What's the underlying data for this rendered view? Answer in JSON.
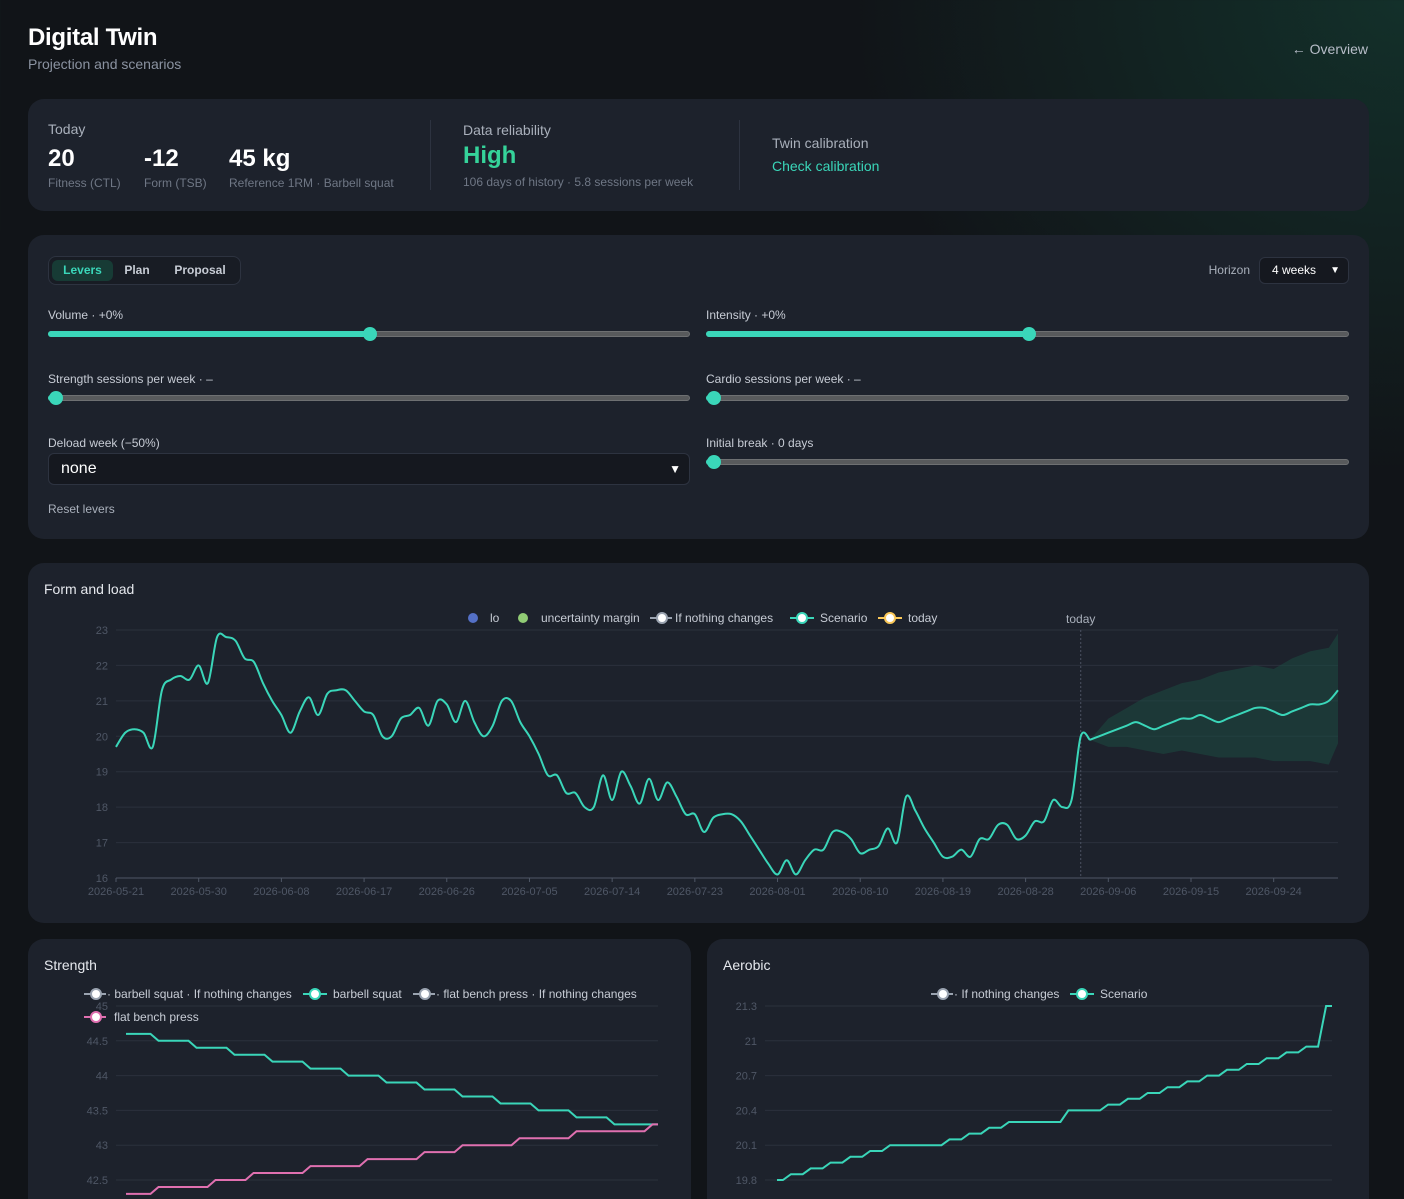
{
  "header": {
    "title": "Digital Twin",
    "subtitle": "Projection and scenarios",
    "back_link": "← Overview"
  },
  "today_panel": {
    "label": "Today",
    "metrics": [
      {
        "value": "20",
        "caption": "Fitness (CTL)"
      },
      {
        "value": "-12",
        "caption": "Form (TSB)"
      },
      {
        "value": "45 kg",
        "caption": "Reference 1RM · Barbell squat"
      }
    ]
  },
  "reliability": {
    "label": "Data reliability",
    "value": "High",
    "detail": "106 days of history · 5.8 sessions per week"
  },
  "calibration": {
    "label": "Twin calibration",
    "link": "Check calibration"
  },
  "levers": {
    "tabs": [
      {
        "label": "Levers",
        "active": true
      },
      {
        "label": "Plan",
        "active": false
      },
      {
        "label": "Proposal",
        "active": false
      }
    ],
    "horizon_label": "Horizon",
    "horizon_value": "4 weeks",
    "sliders": [
      {
        "id": "volume",
        "label": "Volume · +0%",
        "fraction": 0.5
      },
      {
        "id": "intensity",
        "label": "Intensity · +0%",
        "fraction": 0.5
      },
      {
        "id": "strength_sessions",
        "label": "Strength sessions per week · –",
        "fraction": 0
      },
      {
        "id": "cardio_sessions",
        "label": "Cardio sessions per week · –",
        "fraction": 0
      },
      {
        "id": "initial_break",
        "label": "Initial break · 0 days",
        "fraction": 0
      }
    ],
    "deload_label": "Deload week (−50%)",
    "deload_value": "none",
    "reset_label": "Reset levers"
  },
  "colors": {
    "accent": "#3ad6b9",
    "reliability": "#35d39a",
    "lo": "#5470c6",
    "margin": "#91cc75",
    "today": "#fac858",
    "pink": "#e070b0",
    "neutral": "#ffffff"
  },
  "chart_data": [
    {
      "type": "line",
      "title": "Form and load",
      "legend": [
        "lo",
        "uncertainty margin",
        "If nothing changes",
        "Scenario",
        "today"
      ],
      "marker_label": "today",
      "today_index": 105,
      "ylim": [
        16,
        23
      ],
      "yticks": [
        "16",
        "17",
        "18",
        "19",
        "20",
        "21",
        "22",
        "23"
      ],
      "x_labels": [
        "2026-05-21",
        "2026-05-30",
        "2026-06-08",
        "2026-06-17",
        "2026-06-26",
        "2026-07-05",
        "2026-07-14",
        "2026-07-23",
        "2026-08-01",
        "2026-08-10",
        "2026-08-19",
        "2026-08-28",
        "2026-09-06",
        "2026-09-15",
        "2026-09-24"
      ],
      "x_label_step": 9,
      "n_points": 134,
      "series": [
        {
          "name": "Scenario",
          "key": "history",
          "points": [
            [
              0,
              19.7
            ],
            [
              1,
              20.1
            ],
            [
              2,
              20.2
            ],
            [
              3,
              20.1
            ],
            [
              4,
              19.7
            ],
            [
              5,
              21.3
            ],
            [
              6,
              21.6
            ],
            [
              7,
              21.7
            ],
            [
              8,
              21.6
            ],
            [
              9,
              22
            ],
            [
              10,
              21.5
            ],
            [
              11,
              22.8
            ],
            [
              12,
              22.8
            ],
            [
              13,
              22.7
            ],
            [
              14,
              22.2
            ],
            [
              15,
              22.1
            ],
            [
              16,
              21.5
            ],
            [
              17,
              21
            ],
            [
              18,
              20.6
            ],
            [
              19,
              20.1
            ],
            [
              20,
              20.7
            ],
            [
              21,
              21.1
            ],
            [
              22,
              20.6
            ],
            [
              23,
              21.2
            ],
            [
              24,
              21.3
            ],
            [
              25,
              21.3
            ],
            [
              26,
              21
            ],
            [
              27,
              20.7
            ],
            [
              28,
              20.6
            ],
            [
              29,
              20
            ],
            [
              30,
              20
            ],
            [
              31,
              20.5
            ],
            [
              32,
              20.6
            ],
            [
              33,
              20.8
            ],
            [
              34,
              20.3
            ],
            [
              35,
              21
            ],
            [
              36,
              20.9
            ],
            [
              37,
              20.4
            ],
            [
              38,
              21
            ],
            [
              39,
              20.4
            ],
            [
              40,
              20
            ],
            [
              41,
              20.3
            ],
            [
              42,
              21
            ],
            [
              43,
              21
            ],
            [
              44,
              20.4
            ],
            [
              45,
              20
            ],
            [
              46,
              19.5
            ],
            [
              47,
              18.9
            ],
            [
              48,
              18.9
            ],
            [
              49,
              18.4
            ],
            [
              50,
              18.4
            ],
            [
              51,
              18
            ],
            [
              52,
              18
            ],
            [
              53,
              18.9
            ],
            [
              54,
              18.2
            ],
            [
              55,
              19
            ],
            [
              56,
              18.6
            ],
            [
              57,
              18.1
            ],
            [
              58,
              18.8
            ],
            [
              59,
              18.2
            ],
            [
              60,
              18.7
            ],
            [
              61,
              18.3
            ],
            [
              62,
              17.8
            ],
            [
              63,
              17.8
            ],
            [
              64,
              17.3
            ],
            [
              65,
              17.7
            ],
            [
              66,
              17.8
            ],
            [
              67,
              17.8
            ],
            [
              68,
              17.6
            ],
            [
              69,
              17.2
            ],
            [
              70,
              16.8
            ],
            [
              71,
              16.4
            ],
            [
              72,
              16.1
            ],
            [
              73,
              16.5
            ],
            [
              74,
              16.1
            ],
            [
              75,
              16.5
            ],
            [
              76,
              16.8
            ],
            [
              77,
              16.8
            ],
            [
              78,
              17.3
            ],
            [
              79,
              17.3
            ],
            [
              80,
              17.1
            ],
            [
              81,
              16.7
            ],
            [
              82,
              16.8
            ],
            [
              83,
              16.9
            ],
            [
              84,
              17.4
            ],
            [
              85,
              17
            ],
            [
              86,
              18.3
            ],
            [
              87,
              17.9
            ],
            [
              88,
              17.4
            ],
            [
              89,
              17
            ],
            [
              90,
              16.6
            ],
            [
              91,
              16.6
            ],
            [
              92,
              16.8
            ],
            [
              93,
              16.6
            ],
            [
              94,
              17.1
            ],
            [
              95,
              17.1
            ],
            [
              96,
              17.5
            ],
            [
              97,
              17.5
            ],
            [
              98,
              17.1
            ],
            [
              99,
              17.2
            ],
            [
              100,
              17.6
            ],
            [
              101,
              17.6
            ],
            [
              102,
              18.2
            ],
            [
              103,
              18
            ],
            [
              104,
              18.2
            ],
            [
              105,
              20
            ],
            [
              106,
              19.9
            ]
          ]
        },
        {
          "name": "Scenario",
          "key": "scenario",
          "points": [
            [
              106,
              19.9
            ],
            [
              107,
              20
            ],
            [
              108,
              20.1
            ],
            [
              109,
              20.2
            ],
            [
              110,
              20.3
            ],
            [
              111,
              20.4
            ],
            [
              112,
              20.3
            ],
            [
              113,
              20.2
            ],
            [
              114,
              20.3
            ],
            [
              115,
              20.4
            ],
            [
              116,
              20.5
            ],
            [
              117,
              20.5
            ],
            [
              118,
              20.6
            ],
            [
              119,
              20.5
            ],
            [
              120,
              20.4
            ],
            [
              121,
              20.5
            ],
            [
              122,
              20.6
            ],
            [
              123,
              20.7
            ],
            [
              124,
              20.8
            ],
            [
              125,
              20.8
            ],
            [
              126,
              20.7
            ],
            [
              127,
              20.6
            ],
            [
              128,
              20.7
            ],
            [
              129,
              20.8
            ],
            [
              130,
              20.9
            ],
            [
              131,
              20.9
            ],
            [
              132,
              21
            ],
            [
              133,
              21.3
            ]
          ]
        },
        {
          "name": "uncertainty margin",
          "key": "band",
          "points": [
            [
              106,
              19.9,
              19.9
            ],
            [
              108,
              20.5,
              19.7
            ],
            [
              110,
              20.8,
              19.7
            ],
            [
              112,
              21.1,
              19.6
            ],
            [
              114,
              21.3,
              19.5
            ],
            [
              116,
              21.5,
              19.6
            ],
            [
              118,
              21.6,
              19.5
            ],
            [
              120,
              21.8,
              19.4
            ],
            [
              122,
              21.9,
              19.4
            ],
            [
              124,
              22,
              19.4
            ],
            [
              126,
              21.9,
              19.3
            ],
            [
              128,
              22.2,
              19.3
            ],
            [
              130,
              22.4,
              19.3
            ],
            [
              132,
              22.5,
              19.2
            ],
            [
              133,
              22.9,
              19.8
            ]
          ]
        }
      ]
    },
    {
      "type": "line",
      "title": "Strength",
      "legend": [
        "barbell squat · If nothing changes",
        "barbell squat",
        "flat bench press · If nothing changes",
        "flat bench press"
      ],
      "ylim": [
        42.5,
        45
      ],
      "yticks": [
        "42.5",
        "43",
        "43.5",
        "44",
        "44.5",
        "45"
      ],
      "n_points": 29,
      "series": [
        {
          "name": "barbell squat",
          "values": [
            44.6,
            44.6,
            44.5,
            44.5,
            44.4,
            44.4,
            44.3,
            44.3,
            44.2,
            44.2,
            44.1,
            44.1,
            44,
            44,
            43.9,
            43.9,
            43.8,
            43.8,
            43.7,
            43.7,
            43.6,
            43.6,
            43.5,
            43.5,
            43.4,
            43.4,
            43.3,
            43.3,
            43.3
          ]
        },
        {
          "name": "flat bench press",
          "values": [
            42.3,
            42.3,
            42.4,
            42.4,
            42.4,
            42.5,
            42.5,
            42.6,
            42.6,
            42.6,
            42.7,
            42.7,
            42.7,
            42.8,
            42.8,
            42.8,
            42.9,
            42.9,
            43,
            43,
            43,
            43.1,
            43.1,
            43.1,
            43.2,
            43.2,
            43.2,
            43.2,
            43.3
          ]
        }
      ]
    },
    {
      "type": "line",
      "title": "Aerobic",
      "legend": [
        "If nothing changes",
        "Scenario"
      ],
      "ylim": [
        19.8,
        21.3
      ],
      "yticks": [
        "19.8",
        "20.1",
        "20.4",
        "20.7",
        "21",
        "21.3"
      ],
      "n_points": 29,
      "series": [
        {
          "name": "Scenario",
          "values": [
            19.8,
            19.85,
            19.9,
            19.95,
            20,
            20.05,
            20.1,
            20.1,
            20.1,
            20.15,
            20.2,
            20.25,
            20.3,
            20.3,
            20.3,
            20.4,
            20.4,
            20.45,
            20.5,
            20.55,
            20.6,
            20.65,
            20.7,
            20.75,
            20.8,
            20.85,
            20.9,
            20.95,
            21.3
          ]
        }
      ]
    }
  ]
}
